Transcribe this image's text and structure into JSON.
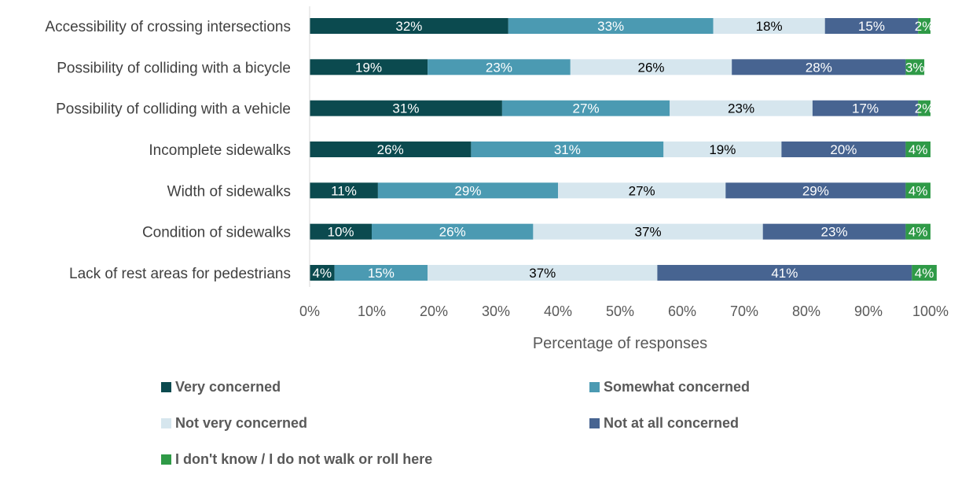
{
  "chart_data": {
    "type": "bar",
    "orientation": "horizontal",
    "stacked": true,
    "categories": [
      "Accessibility of crossing intersections",
      "Possibility of colliding with a bicycle",
      "Possibility of colliding with a vehicle",
      "Incomplete sidewalks",
      "Width of sidewalks",
      "Condition of sidewalks",
      "Lack of rest areas for pedestrians"
    ],
    "series": [
      {
        "name": "Very concerned",
        "color": "#0b4a4f",
        "label_color": "#ffffff",
        "values": [
          32,
          19,
          31,
          26,
          11,
          10,
          4
        ]
      },
      {
        "name": "Somewhat concerned",
        "color": "#4b9ab2",
        "label_color": "#ffffff",
        "values": [
          33,
          23,
          27,
          31,
          29,
          26,
          15
        ]
      },
      {
        "name": "Not very concerned",
        "color": "#d6e6ee",
        "label_color": "#000000",
        "values": [
          18,
          26,
          23,
          19,
          27,
          37,
          37
        ]
      },
      {
        "name": "Not at all concerned",
        "color": "#476491",
        "label_color": "#ffffff",
        "values": [
          15,
          28,
          17,
          20,
          29,
          23,
          41
        ]
      },
      {
        "name": "I don't know / I do not walk or roll here",
        "color": "#2f9a47",
        "label_color": "#ffffff",
        "values": [
          2,
          3,
          2,
          4,
          4,
          4,
          4
        ]
      }
    ],
    "data_labels": [
      [
        "32%",
        "33%",
        "18%",
        "15%",
        "2%"
      ],
      [
        "19%",
        "23%",
        "26%",
        "28%",
        "3%"
      ],
      [
        "31%",
        "27%",
        "23%",
        "17%",
        "2%"
      ],
      [
        "26%",
        "31%",
        "19%",
        "20%",
        "4%"
      ],
      [
        "11%",
        "29%",
        "27%",
        "29%",
        "4%"
      ],
      [
        "10%",
        "26%",
        "37%",
        "23%",
        "4%"
      ],
      [
        "4%",
        "15%",
        "37%",
        "41%",
        "4%"
      ]
    ],
    "xlim": [
      0,
      100
    ],
    "xticks": [
      "0%",
      "10%",
      "20%",
      "30%",
      "40%",
      "50%",
      "60%",
      "70%",
      "80%",
      "90%",
      "100%"
    ],
    "xlabel": "Percentage of responses",
    "ylabel": "",
    "title": "",
    "grid": false,
    "legend_position": "bottom"
  }
}
